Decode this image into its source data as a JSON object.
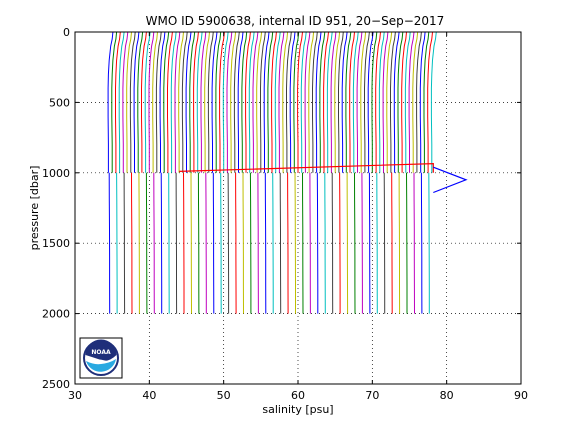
{
  "chart_data": {
    "type": "line",
    "title": "WMO ID 5900638, internal ID 951, 20−Sep−2017",
    "xlabel": "salinity [psu]",
    "ylabel": "pressure [dbar]",
    "xlim": [
      30,
      90
    ],
    "ylim": [
      0,
      2500
    ],
    "y_reversed": true,
    "grid": "dotted",
    "xticks": [
      "30",
      "40",
      "50",
      "60",
      "70",
      "80",
      "90"
    ],
    "yticks": [
      "0",
      "500",
      "1000",
      "1500",
      "2000",
      "2500"
    ],
    "logo": "noaa-logo",
    "series_colors": [
      "#0000ff",
      "#008000",
      "#ff0000",
      "#00bfbf",
      "#bf00bf",
      "#bfbf00",
      "#404040"
    ],
    "profile_offset_psu": 0.5,
    "shallow_group": {
      "count": 88,
      "first_bottom_salinity": 34.5,
      "pressure": [
        0,
        50,
        100,
        200,
        300,
        400,
        600,
        800,
        1000
      ],
      "salinity": [
        35.1,
        35.0,
        34.8,
        34.6,
        34.5,
        34.45,
        34.45,
        34.5,
        34.5
      ]
    },
    "deep_group": {
      "count": 44,
      "first_salinity": 34.6,
      "pressure": [
        1000,
        1200,
        1400,
        1600,
        1800,
        2000
      ],
      "salinity": [
        34.68,
        34.7,
        34.72,
        34.73,
        34.74,
        34.75
      ]
    },
    "spike_series": {
      "name": "",
      "color": "#0000ff",
      "x": [
        78.2,
        82.6,
        78.2
      ],
      "y": [
        960,
        1050,
        1140
      ]
    },
    "connector_series": {
      "name": "",
      "color": "#ff0000",
      "x": [
        44.0,
        78.2,
        78.2
      ],
      "y": [
        990,
        935,
        1000
      ]
    }
  }
}
